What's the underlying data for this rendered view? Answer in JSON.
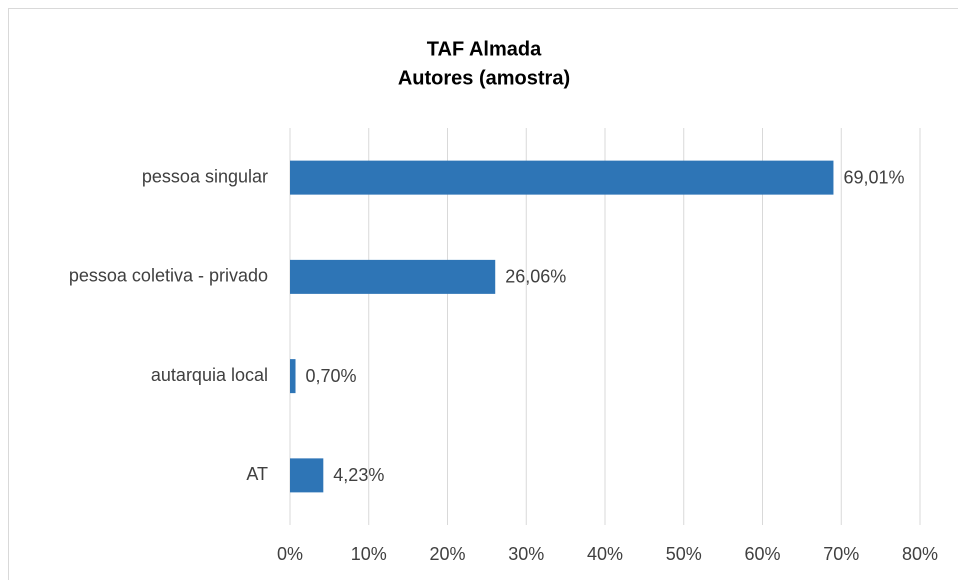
{
  "chart_data": {
    "type": "bar",
    "orientation": "horizontal",
    "title": "TAF Almada",
    "subtitle": "Autores (amostra)",
    "categories": [
      "pessoa singular",
      "pessoa coletiva - privado",
      "autarquia local",
      "AT"
    ],
    "values": [
      69.01,
      26.06,
      0.7,
      4.23
    ],
    "value_labels": [
      "69,01%",
      "26,06%",
      "0,70%",
      "4,23%"
    ],
    "color": "#2e75b6",
    "xlim": [
      0,
      80
    ],
    "xticks": [
      {
        "value": 0,
        "label": "0%"
      },
      {
        "value": 10,
        "label": "10%"
      },
      {
        "value": 20,
        "label": "20%"
      },
      {
        "value": 30,
        "label": "30%"
      },
      {
        "value": 40,
        "label": "40%"
      },
      {
        "value": 50,
        "label": "50%"
      },
      {
        "value": 60,
        "label": "60%"
      },
      {
        "value": 70,
        "label": "70%"
      },
      {
        "value": 80,
        "label": "80%"
      }
    ],
    "grid": true
  }
}
